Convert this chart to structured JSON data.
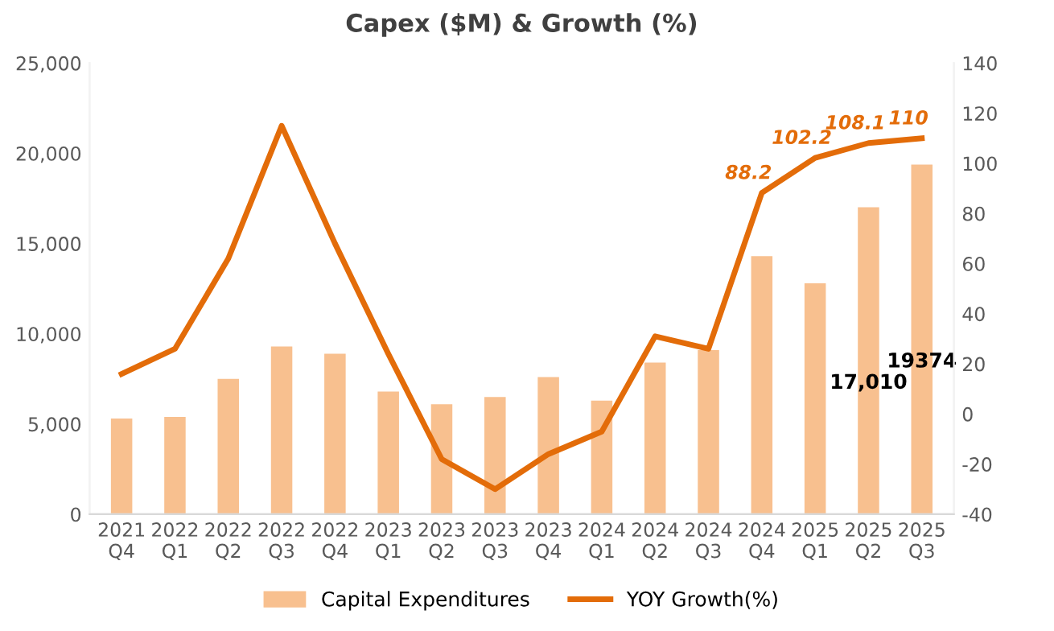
{
  "chart_data": {
    "type": "bar",
    "title": "Capex ($M) & Growth (%)",
    "categories": [
      "2021\nQ4",
      "2022\nQ1",
      "2022\nQ2",
      "2022\nQ3",
      "2022\nQ4",
      "2023\nQ1",
      "2023\nQ2",
      "2023\nQ3",
      "2023\nQ4",
      "2024\nQ1",
      "2024\nQ2",
      "2024\nQ3",
      "2024\nQ4",
      "2025\nQ1",
      "2025\nQ2",
      "2025\nQ3"
    ],
    "series": [
      {
        "name": "Capital Expenditures",
        "color": "#f8c08f",
        "values": [
          5300,
          5400,
          7500,
          9300,
          8900,
          6800,
          6100,
          6500,
          7600,
          6300,
          8400,
          9100,
          14300,
          12800,
          17010,
          19374
        ],
        "value_labels": [
          null,
          null,
          null,
          null,
          null,
          null,
          null,
          null,
          null,
          null,
          null,
          null,
          null,
          null,
          "17,010",
          "19374"
        ]
      },
      {
        "name": "YOY Growth(%)",
        "type": "line",
        "axis": "y2",
        "color": "#e36c09",
        "values": [
          16,
          26,
          62,
          115,
          68,
          24,
          -18,
          -30,
          -16,
          -7,
          31,
          26,
          88.2,
          102.2,
          108.1,
          110
        ],
        "value_labels": [
          null,
          null,
          null,
          null,
          null,
          null,
          null,
          null,
          null,
          null,
          null,
          null,
          "88.2",
          "102.2",
          "108.1",
          "110"
        ]
      }
    ],
    "ylim": [
      0,
      25000
    ],
    "yticks": [
      {
        "value": 0,
        "label": "0"
      },
      {
        "value": 5000,
        "label": "5,000"
      },
      {
        "value": 10000,
        "label": "10,000"
      },
      {
        "value": 15000,
        "label": "15,000"
      },
      {
        "value": 20000,
        "label": "20,000"
      },
      {
        "value": 25000,
        "label": "25,000"
      }
    ],
    "y2lim": [
      -40,
      140
    ],
    "y2ticks": [
      -40,
      -20,
      0,
      20,
      40,
      60,
      80,
      100,
      120,
      140
    ],
    "legend": "bottom",
    "grid": false,
    "marker": "none",
    "line_style": "solid"
  }
}
